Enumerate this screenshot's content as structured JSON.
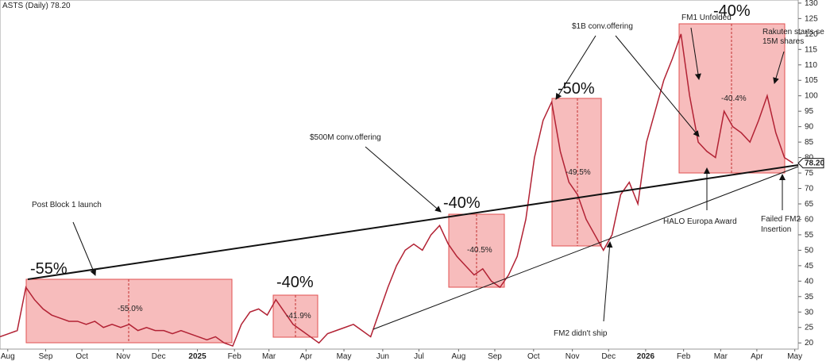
{
  "chart_data": {
    "type": "line",
    "title": "ASTS (Daily) 78.20",
    "x": [
      0,
      1,
      2,
      3,
      4,
      5,
      6,
      7,
      8,
      9,
      10,
      11,
      12,
      13,
      14,
      15,
      16,
      17,
      18,
      19,
      20,
      21,
      22,
      23,
      24,
      25,
      26,
      27,
      28,
      29,
      30,
      31,
      32,
      33,
      34,
      35,
      36,
      37,
      38,
      39,
      40,
      41,
      42,
      43,
      44,
      45,
      46,
      47,
      48,
      49,
      50,
      51,
      52,
      53,
      54,
      55,
      56,
      57,
      58,
      59,
      60,
      61,
      62,
      63,
      64,
      65,
      66,
      67,
      68,
      69,
      70,
      71,
      72,
      73,
      74,
      75,
      76,
      77,
      78,
      79,
      80,
      81,
      82,
      83,
      84,
      85,
      86,
      87,
      88,
      89,
      90,
      91,
      92
    ],
    "series": [
      {
        "name": "ASTS",
        "color": "#b22234",
        "values": [
          22,
          23,
          24,
          38,
          34,
          31,
          29,
          28,
          27,
          27,
          26,
          27,
          25,
          26,
          25,
          26,
          24,
          25,
          24,
          24,
          23,
          24,
          23,
          22,
          21,
          22,
          20,
          19,
          26,
          30,
          31,
          29,
          34,
          30,
          26,
          24,
          22,
          20,
          23,
          24,
          25,
          26,
          24,
          22,
          30,
          38,
          45,
          50,
          52,
          50,
          55,
          58,
          52,
          48,
          45,
          42,
          44,
          40,
          38,
          42,
          48,
          60,
          80,
          92,
          98,
          82,
          72,
          68,
          60,
          55,
          50,
          55,
          68,
          72,
          65,
          85,
          95,
          105,
          112,
          120,
          100,
          85,
          82,
          80,
          95,
          90,
          88,
          85,
          92,
          100,
          88,
          80,
          78.2
        ]
      }
    ],
    "xlim": [
      0,
      92.6
    ],
    "xticks": [
      {
        "value": 0.9,
        "label": "Aug"
      },
      {
        "value": 5.3,
        "label": "Sep"
      },
      {
        "value": 9.5,
        "label": "Oct"
      },
      {
        "value": 14.3,
        "label": "Nov"
      },
      {
        "value": 18.4,
        "label": "Dec"
      },
      {
        "value": 22.9,
        "label": "2025"
      },
      {
        "value": 27.2,
        "label": "Feb"
      },
      {
        "value": 31.2,
        "label": "Mar"
      },
      {
        "value": 35.5,
        "label": "Apr"
      },
      {
        "value": 39.9,
        "label": "May"
      },
      {
        "value": 44.4,
        "label": "Jun"
      },
      {
        "value": 48.6,
        "label": "Jul"
      },
      {
        "value": 53.2,
        "label": "Aug"
      },
      {
        "value": 57.4,
        "label": "Sep"
      },
      {
        "value": 61.9,
        "label": "Oct"
      },
      {
        "value": 66.4,
        "label": "Nov"
      },
      {
        "value": 70.6,
        "label": "Dec"
      },
      {
        "value": 74.9,
        "label": "2026"
      },
      {
        "value": 79.3,
        "label": "Feb"
      },
      {
        "value": 83.6,
        "label": "Mar"
      },
      {
        "value": 87.8,
        "label": "Apr"
      },
      {
        "value": 92.2,
        "label": "May"
      }
    ],
    "ylim": [
      18,
      131
    ],
    "yticks": [
      20,
      25,
      30,
      35,
      40,
      45,
      50,
      55,
      60,
      65,
      70,
      75,
      80,
      85,
      90,
      95,
      100,
      105,
      110,
      115,
      120,
      125,
      130
    ],
    "last_price": {
      "value": 78.2,
      "label": "78.20"
    },
    "annotations": [
      "-55%",
      "-55.0%",
      "-40%",
      "-41.9%",
      "-40%",
      "-40.5%",
      "-50%",
      "-49.5%",
      "-40%",
      "-40.4%",
      "Post Block 1 launch",
      "$500M conv.offering",
      "$1B conv.offering",
      "FM1 Unfolded",
      "Rakuten starts se",
      "15M shares",
      "HALO Europa Award",
      "Failed FM2",
      "Insertion",
      "FM2 didn't ship"
    ]
  }
}
